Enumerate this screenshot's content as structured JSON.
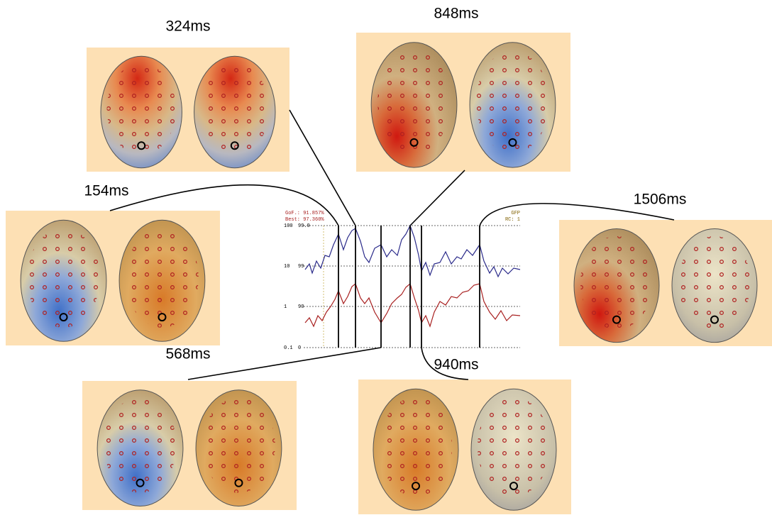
{
  "panels": [
    {
      "label": "324ms"
    },
    {
      "label": "848ms"
    },
    {
      "label": "154ms"
    },
    {
      "label": "1506ms"
    },
    {
      "label": "568ms"
    },
    {
      "label": "940ms"
    }
  ],
  "chart": {
    "gof": "GoF.: 91.857%",
    "best": "Best: 97.360%",
    "gfp": "GFP",
    "rc": "RC: 1",
    "axis_left": [
      "100",
      "10",
      "1",
      "0.1"
    ],
    "axis_right": [
      "99.9",
      "99",
      "90",
      "0"
    ]
  }
}
